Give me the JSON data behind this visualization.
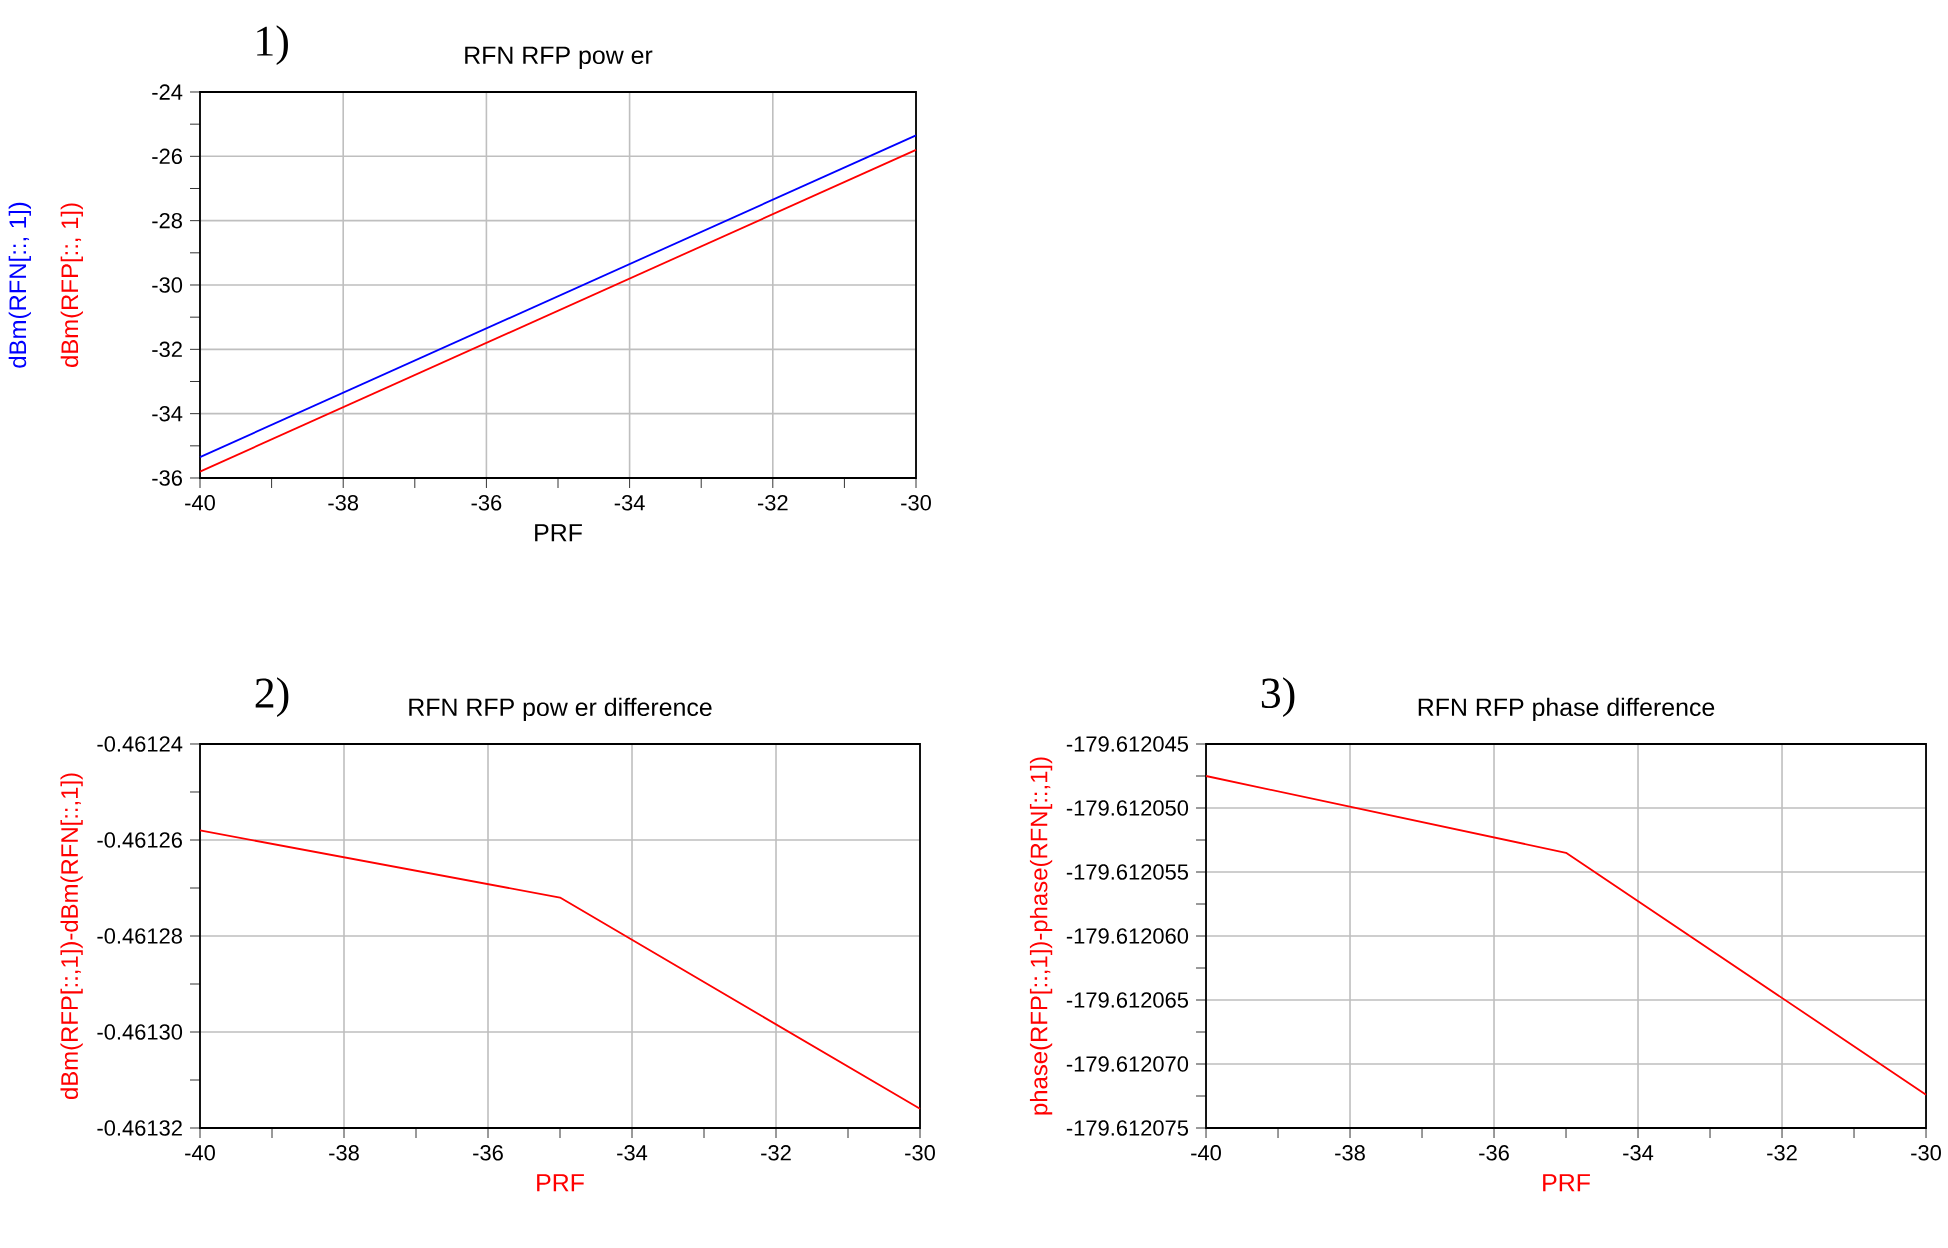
{
  "chart_data": [
    {
      "type": "line",
      "title": "RFN RFP pow er",
      "xlabel": "PRF",
      "annotations": [
        "1)"
      ],
      "x": [
        -40,
        -30
      ],
      "series": [
        {
          "name": "dBm(RFN[::, 1])",
          "color": "#0000ff",
          "values": [
            -35.35,
            -25.35
          ]
        },
        {
          "name": "dBm(RFP[::, 1])",
          "color": "#ff0000",
          "values": [
            -35.8,
            -25.8
          ]
        }
      ],
      "xlim": [
        -40,
        -30
      ],
      "ylim": [
        -36,
        -24
      ],
      "xticks": [
        -40,
        -38,
        -36,
        -34,
        -32,
        -30
      ],
      "yticks": [
        -36,
        -34,
        -32,
        -30,
        -28,
        -26,
        -24
      ],
      "grid": true
    },
    {
      "type": "line",
      "title": "RFN RFP pow er difference",
      "xlabel": "PRF",
      "ylabel": "dBm(RFP[::,1])-dBm(RFN[::,1])",
      "annotations": [
        "2)"
      ],
      "x": [
        -40,
        -35,
        -30
      ],
      "series": [
        {
          "color": "#ff0000",
          "values": [
            -0.461258,
            -0.461272,
            -0.461316
          ]
        }
      ],
      "xlim": [
        -40,
        -30
      ],
      "ylim": [
        -0.46132,
        -0.46124
      ],
      "xticks": [
        -40,
        -38,
        -36,
        -34,
        -32,
        -30
      ],
      "yticks": [
        -0.46132,
        {
          "value": -0.4613,
          "label": "-0.46130"
        },
        -0.46128,
        -0.46126,
        -0.46124
      ],
      "grid": true
    },
    {
      "type": "line",
      "title": "RFN RFP phase difference",
      "xlabel": "PRF",
      "ylabel": "phase(RFP[::,1])-phase(RFN[::,1])",
      "annotations": [
        "3)"
      ],
      "x": [
        -40,
        -35,
        -30
      ],
      "series": [
        {
          "color": "#ff0000",
          "values": [
            -179.6120475,
            -179.6120535,
            -179.6120724
          ]
        }
      ],
      "xlim": [
        -40,
        -30
      ],
      "ylim": [
        -179.612075,
        -179.612045
      ],
      "xticks": [
        -40,
        -38,
        -36,
        -34,
        -32,
        -30
      ],
      "yticks": [
        -179.612075,
        {
          "value": -179.61207,
          "label": "-179.612070"
        },
        -179.612065,
        {
          "value": -179.61206,
          "label": "-179.612060"
        },
        -179.612055,
        {
          "value": -179.61205,
          "label": "-179.612050"
        },
        -179.612045
      ],
      "grid": true
    }
  ]
}
